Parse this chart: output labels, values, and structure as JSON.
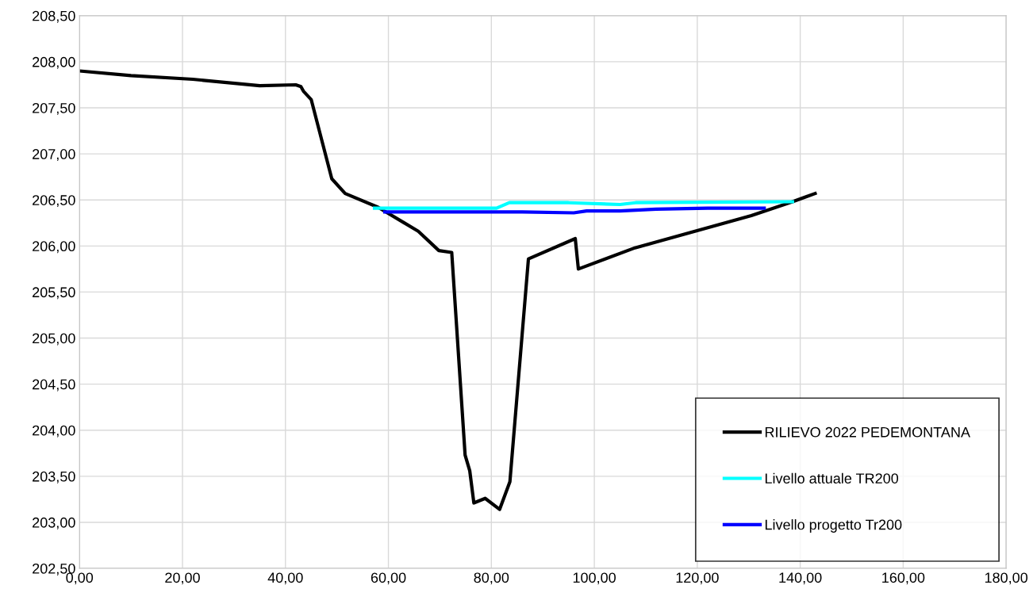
{
  "chart_data": {
    "type": "line",
    "xlim": [
      0,
      180
    ],
    "xticks": [
      {
        "value": 0,
        "label": "0,00"
      },
      {
        "value": 20,
        "label": "20,00"
      },
      {
        "value": 40,
        "label": "40,00"
      },
      {
        "value": 60,
        "label": "60,00"
      },
      {
        "value": 80,
        "label": "80,00"
      },
      {
        "value": 100,
        "label": "100,00"
      },
      {
        "value": 120,
        "label": "120,00"
      },
      {
        "value": 140,
        "label": "140,00"
      },
      {
        "value": 160,
        "label": "160,00"
      },
      {
        "value": 180,
        "label": "180,00"
      }
    ],
    "ylim": [
      202.5,
      208.5
    ],
    "yticks": [
      {
        "value": 202.5,
        "label": "202,50"
      },
      {
        "value": 203,
        "label": "203,00"
      },
      {
        "value": 203.5,
        "label": "203,50"
      },
      {
        "value": 204,
        "label": "204,00"
      },
      {
        "value": 204.5,
        "label": "204,50"
      },
      {
        "value": 205,
        "label": "205,00"
      },
      {
        "value": 205.5,
        "label": "205,50"
      },
      {
        "value": 206,
        "label": "206,00"
      },
      {
        "value": 206.5,
        "label": "206,50"
      },
      {
        "value": 207,
        "label": "207,00"
      },
      {
        "value": 207.5,
        "label": "207,50"
      },
      {
        "value": 208,
        "label": "208,00"
      },
      {
        "value": 208.5,
        "label": "208,50"
      }
    ],
    "grid": true,
    "legend": "bottom right",
    "marker": "none",
    "line_style": "solid",
    "series": [
      {
        "name": "RILIEVO 2022 PEDEMONTANA",
        "color": "#000000",
        "x": [
          0,
          10,
          22,
          35,
          42,
          43,
          43.5,
          45,
          49,
          51.6,
          58,
          65.8,
          69.8,
          72.3,
          74.9,
          75.8,
          76.6,
          78.8,
          81.6,
          83.6,
          87.2,
          96.3,
          96.9,
          107.9,
          130.5,
          138.5,
          142.9
        ],
        "values": [
          207.9,
          207.85,
          207.81,
          207.74,
          207.75,
          207.73,
          207.68,
          207.59,
          206.73,
          206.57,
          206.42,
          206.16,
          205.95,
          205.93,
          203.73,
          203.56,
          203.21,
          203.26,
          203.14,
          203.44,
          205.86,
          206.08,
          205.75,
          205.98,
          206.33,
          206.48,
          206.57
        ]
      },
      {
        "name": "Livello attuale TR200",
        "color": "#00ffff",
        "x": [
          57.3,
          81,
          83.5,
          95,
          105,
          108,
          138.5
        ],
        "values": [
          206.41,
          206.41,
          206.47,
          206.47,
          206.45,
          206.47,
          206.48
        ]
      },
      {
        "name": "Livello progetto Tr200",
        "color": "#0000ff",
        "x": [
          59.3,
          86,
          96,
          98.5,
          105,
          112,
          122,
          133
        ],
        "values": [
          206.37,
          206.37,
          206.36,
          206.38,
          206.38,
          206.4,
          206.41,
          206.41
        ]
      }
    ]
  }
}
